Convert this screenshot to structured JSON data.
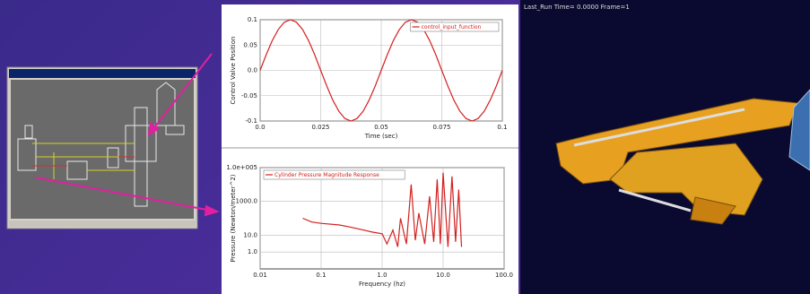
{
  "header": {
    "animation_status": "Last_Run   Time= 0.0000  Frame=1"
  },
  "chart_data": [
    {
      "type": "line",
      "xlabel": "Time (sec)",
      "ylabel": "Control Valve Position",
      "legend": "upper right",
      "grid": true,
      "x": [
        0,
        0.0025,
        0.005,
        0.0075,
        0.01,
        0.0125,
        0.015,
        0.0175,
        0.02,
        0.0225,
        0.025,
        0.0275,
        0.03,
        0.0325,
        0.035,
        0.0375,
        0.04,
        0.0425,
        0.045,
        0.0475,
        0.05,
        0.0525,
        0.055,
        0.0575,
        0.06,
        0.0625,
        0.065,
        0.0675,
        0.07,
        0.0725,
        0.075,
        0.0775,
        0.08,
        0.0825,
        0.085,
        0.0875,
        0.09,
        0.0925,
        0.095,
        0.0975,
        0.1
      ],
      "series": [
        {
          "name": "control_input_function",
          "color": "#d42020",
          "values": [
            0,
            0.0309,
            0.0588,
            0.0809,
            0.0951,
            0.1,
            0.0951,
            0.0809,
            0.0588,
            0.0309,
            0,
            -0.0309,
            -0.0588,
            -0.0809,
            -0.0951,
            -0.1,
            -0.0951,
            -0.0809,
            -0.0588,
            -0.0309,
            0,
            0.0309,
            0.0588,
            0.0809,
            0.0951,
            0.1,
            0.0951,
            0.0809,
            0.0588,
            0.0309,
            0,
            -0.0309,
            -0.0588,
            -0.0809,
            -0.0951,
            -0.1,
            -0.0951,
            -0.0809,
            -0.0588,
            -0.0309,
            0
          ]
        }
      ],
      "xlim": [
        0,
        0.1
      ],
      "ylim": [
        -0.1,
        0.1
      ],
      "xticks": [
        {
          "value": 0,
          "label": "0.0"
        },
        0.025,
        0.05,
        0.075,
        0.1
      ],
      "yticks": [
        0.1,
        0.05,
        {
          "value": 0,
          "label": "0.0"
        },
        -0.05,
        -0.1
      ]
    },
    {
      "type": "line",
      "xlabel": "Frequency (hz)",
      "ylabel": "Pressure (Newton/meter^2)",
      "legend": "upper left",
      "grid": true,
      "log_x": true,
      "log_y": true,
      "x": [
        0.05,
        0.07,
        0.1,
        0.2,
        0.3,
        0.5,
        0.7,
        1.0,
        1.2,
        1.5,
        1.8,
        2.0,
        2.5,
        3.0,
        3.5,
        4.0,
        5,
        6,
        7,
        8,
        9,
        10,
        12,
        14,
        16,
        18,
        20
      ],
      "series": [
        {
          "name": "Cylinder Pressure Magnitude Response",
          "color": "#d42020",
          "values": [
            100,
            60,
            50,
            40,
            30,
            20,
            15,
            12,
            3,
            20,
            2,
            100,
            3,
            10000,
            5,
            200,
            3,
            2000,
            4,
            20000,
            3,
            50000,
            2,
            30000,
            4,
            5000,
            2
          ]
        }
      ],
      "xlim": [
        0.01,
        100
      ],
      "ylim": [
        0.1,
        100000
      ],
      "xticks": [
        0.01,
        0.1,
        {
          "value": 1,
          "label": "1.0"
        },
        {
          "value": 10,
          "label": "10.0"
        },
        {
          "value": 100,
          "label": "100.0"
        }
      ],
      "yticks": [
        {
          "value": 100000,
          "label": "1.0e+005"
        },
        {
          "value": 1000,
          "label": "1000.0"
        },
        {
          "value": 10,
          "label": "10.0"
        },
        {
          "value": 1,
          "label": "1.0"
        }
      ]
    }
  ]
}
